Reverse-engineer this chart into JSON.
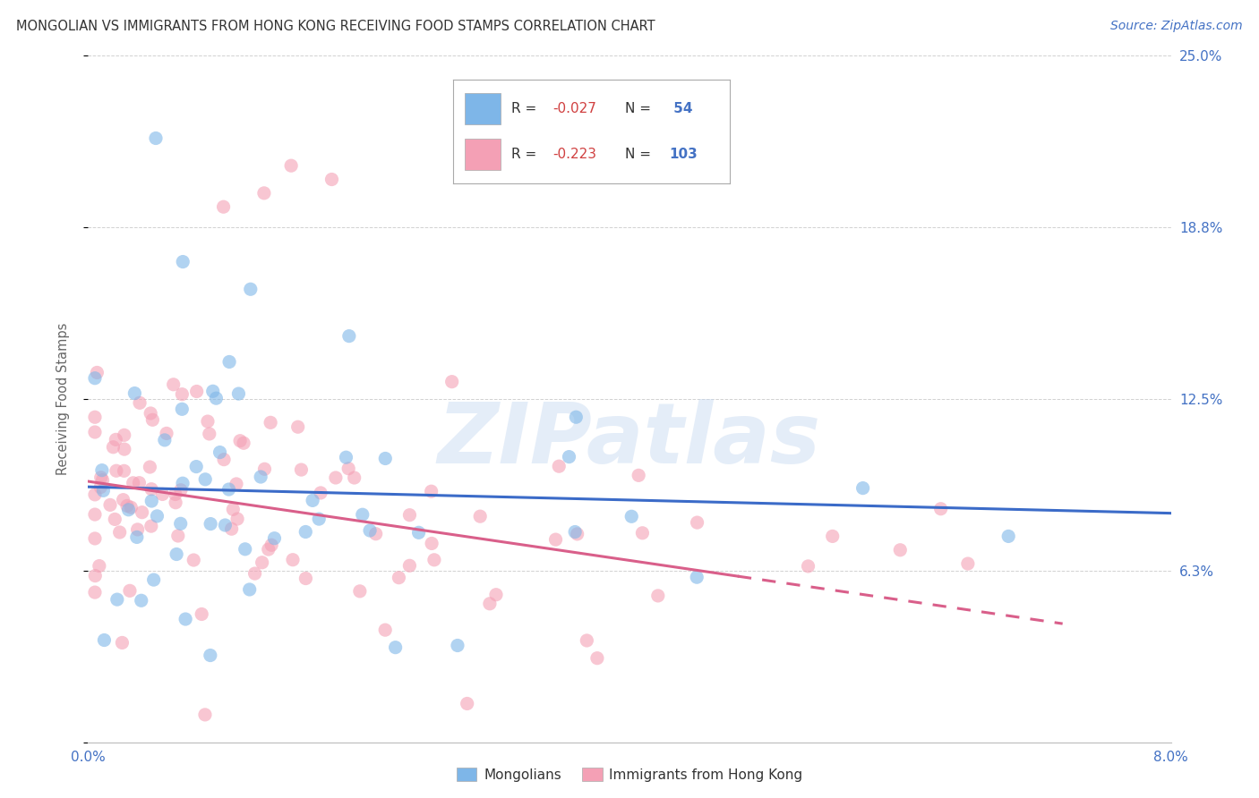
{
  "title": "MONGOLIAN VS IMMIGRANTS FROM HONG KONG RECEIVING FOOD STAMPS CORRELATION CHART",
  "source": "Source: ZipAtlas.com",
  "ylabel": "Receiving Food Stamps",
  "watermark": "ZIPatlas",
  "blue_R": -0.027,
  "blue_N": 54,
  "pink_R": -0.223,
  "pink_N": 103,
  "xlim": [
    0.0,
    8.0
  ],
  "ylim": [
    0.0,
    25.0
  ],
  "yticks": [
    0.0,
    6.25,
    12.5,
    18.75,
    25.0
  ],
  "ytick_labels": [
    "",
    "6.3%",
    "12.5%",
    "18.8%",
    "25.0%"
  ],
  "blue_color": "#7EB6E8",
  "pink_color": "#F4A0B5",
  "blue_line_color": "#3B6BC8",
  "pink_line_color": "#D95F8A",
  "title_color": "#333333",
  "source_color": "#4472C4",
  "tick_label_color": "#4472C4",
  "grid_color": "#CCCCCC",
  "background_color": "#FFFFFF",
  "legend_text_color": "#333333",
  "legend_value_color": "#D04040",
  "legend_n_color": "#4472C4"
}
